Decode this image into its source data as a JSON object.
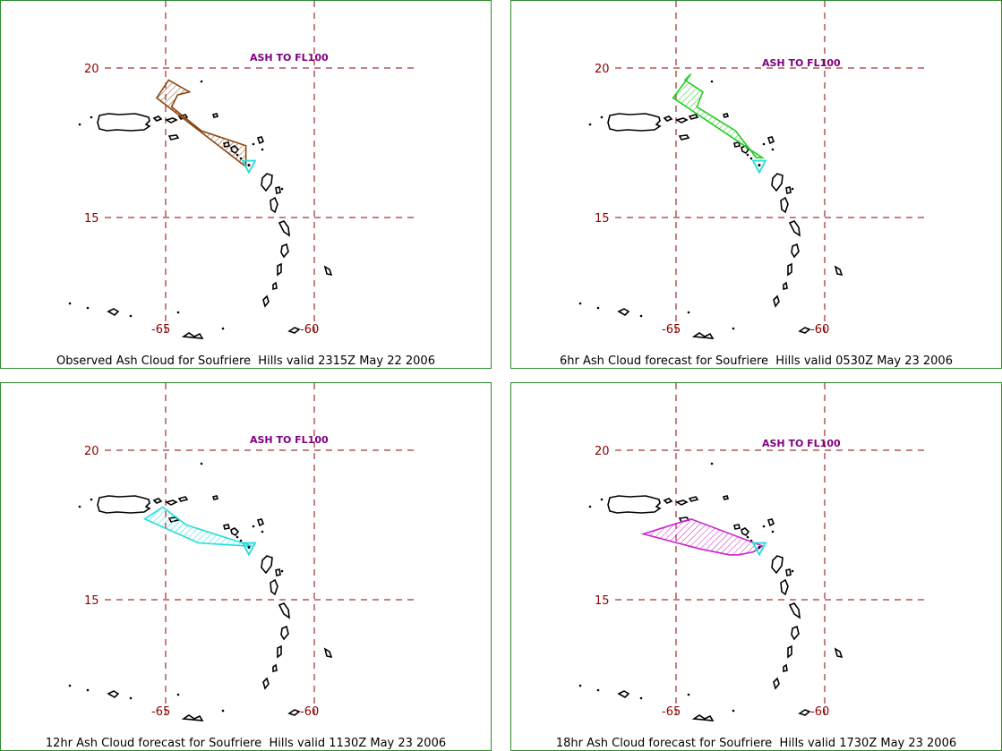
{
  "panels": [
    {
      "caption": "Observed Ash Cloud for Soufriere  Hills valid 2315Z May 22 2006",
      "ash_label": "ASH TO FL100",
      "plume_color": "#8b4513",
      "plume_vertices": [
        [
          -65.3,
          19.0
        ],
        [
          -64.9,
          19.6
        ],
        [
          -64.2,
          19.2
        ],
        [
          -64.6,
          19.1
        ],
        [
          -64.8,
          18.7
        ],
        [
          -63.8,
          17.9
        ],
        [
          -62.3,
          17.4
        ],
        [
          -62.3,
          16.7
        ]
      ]
    },
    {
      "caption": "6hr Ash Cloud forecast for Soufriere  Hills valid 0530Z May 23 2006",
      "ash_label": "ASH TO FL100",
      "plume_color": "#22cc22",
      "plume_vertices": [
        [
          -65.1,
          19.0
        ],
        [
          -64.5,
          19.8
        ],
        [
          -64.7,
          19.6
        ],
        [
          -64.1,
          19.2
        ],
        [
          -64.3,
          18.7
        ],
        [
          -63.0,
          17.9
        ],
        [
          -62.3,
          17.0
        ],
        [
          -62.1,
          17.0
        ]
      ]
    },
    {
      "caption": "12hr Ash Cloud forecast for Soufriere  Hills valid 1130Z May 23 2006",
      "ash_label": "ASH TO FL100",
      "plume_color": "#22dddd",
      "plume_vertices": [
        [
          -65.7,
          17.7
        ],
        [
          -65.1,
          18.1
        ],
        [
          -64.3,
          17.5
        ],
        [
          -62.1,
          16.8
        ],
        [
          -62.3,
          16.8
        ],
        [
          -63.9,
          16.9
        ]
      ]
    },
    {
      "caption": "18hr Ash Cloud forecast for Soufriere  Hills valid 1730Z May 23 2006",
      "ash_label": "ASH TO FL100",
      "plume_color": "#cc22cc",
      "plume_vertices": [
        [
          -66.1,
          17.2
        ],
        [
          -64.5,
          17.7
        ],
        [
          -62.1,
          16.8
        ],
        [
          -62.4,
          16.6
        ],
        [
          -62.9,
          16.5
        ],
        [
          -63.2,
          16.5
        ],
        [
          -64.2,
          16.7
        ]
      ]
    }
  ],
  "grid": {
    "lat_labels": [
      "20",
      "15"
    ],
    "lon_labels": [
      "-65",
      "-60"
    ],
    "line_color": "#8b0000"
  },
  "volcano_marker_color": "#22dddd"
}
